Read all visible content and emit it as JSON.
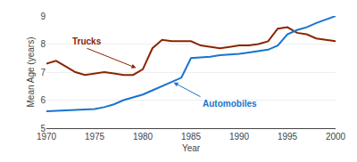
{
  "chart_data": {
    "type": "line",
    "x": [
      1970,
      1971,
      1972,
      1973,
      1974,
      1975,
      1976,
      1977,
      1978,
      1979,
      1980,
      1981,
      1982,
      1983,
      1984,
      1985,
      1986,
      1987,
      1988,
      1989,
      1990,
      1991,
      1992,
      1993,
      1994,
      1995,
      1996,
      1997,
      1998,
      1999,
      2000
    ],
    "series": [
      {
        "color": "#8B2500",
        "values": [
          7.3,
          7.4,
          7.2,
          7.0,
          6.9,
          6.95,
          7.0,
          6.95,
          6.9,
          6.9,
          7.1,
          7.85,
          8.15,
          8.1,
          8.1,
          8.1,
          7.95,
          7.9,
          7.85,
          7.9,
          7.95,
          7.95,
          8.0,
          8.1,
          8.55,
          8.6,
          8.4,
          8.35,
          8.2,
          8.15,
          8.1
        ]
      },
      {
        "color": "#1874CD",
        "values": [
          5.6,
          5.62,
          5.63,
          5.65,
          5.67,
          5.68,
          5.75,
          5.85,
          6.0,
          6.1,
          6.2,
          6.35,
          6.5,
          6.65,
          6.8,
          7.5,
          7.52,
          7.55,
          7.6,
          7.62,
          7.65,
          7.7,
          7.75,
          7.8,
          7.95,
          8.35,
          8.5,
          8.6,
          8.75,
          8.88,
          9.0
        ]
      }
    ],
    "xlabel": "Year",
    "ylabel": "Mean Age (years)",
    "xlim": [
      1970,
      2000
    ],
    "xticks": [
      1970,
      1975,
      1980,
      1985,
      1990,
      1995,
      2000
    ],
    "ylim": [
      5,
      9
    ],
    "yticks": [
      5,
      6,
      7,
      8,
      9
    ],
    "grid": true,
    "annotations": [
      {
        "text": "Trucks",
        "x": 1979.3,
        "y": 7.15,
        "color": "#8B2500"
      },
      {
        "text": "Automobiles",
        "x": 1983.2,
        "y": 6.63,
        "color": "#1874CD"
      }
    ]
  }
}
